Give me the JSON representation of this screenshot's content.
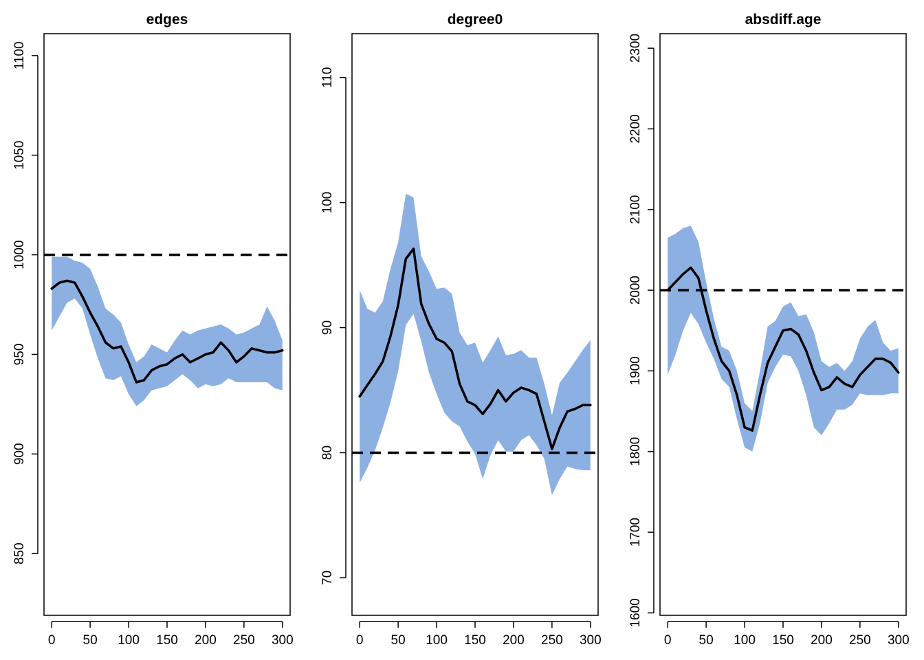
{
  "colors": {
    "band": "#8db0e3",
    "line": "#000000"
  },
  "chart_data": [
    {
      "type": "line",
      "title": "edges",
      "xlabel": "",
      "ylabel": "",
      "xlim": [
        -10,
        310
      ],
      "ylim": [
        819,
        1111
      ],
      "x_ticks": [
        0,
        50,
        100,
        150,
        200,
        250,
        300
      ],
      "y_ticks": [
        850,
        900,
        950,
        1000,
        1050,
        1100
      ],
      "target": 1000,
      "x": [
        0,
        10,
        20,
        30,
        40,
        50,
        60,
        70,
        80,
        90,
        100,
        110,
        120,
        130,
        140,
        150,
        160,
        170,
        180,
        190,
        200,
        210,
        220,
        230,
        240,
        250,
        260,
        270,
        280,
        290,
        300
      ],
      "mean": [
        983,
        986,
        987,
        986,
        979,
        971,
        964,
        956,
        953,
        954,
        946,
        936,
        937,
        942,
        944,
        945,
        948,
        950,
        946,
        948,
        950,
        951,
        956,
        952,
        946,
        949,
        953,
        952,
        951,
        951,
        952
      ],
      "upper": [
        999,
        999,
        999,
        997,
        996,
        993,
        984,
        973,
        970,
        966,
        955,
        946,
        949,
        955,
        953,
        951,
        957,
        962,
        960,
        962,
        963,
        964,
        965,
        963,
        960,
        961,
        963,
        965,
        974,
        967,
        957
      ],
      "lower": [
        962,
        969,
        976,
        978,
        973,
        960,
        948,
        938,
        937,
        939,
        930,
        924,
        927,
        932,
        933,
        934,
        937,
        940,
        937,
        933,
        935,
        934,
        935,
        938,
        936,
        936,
        936,
        936,
        936,
        933,
        932
      ]
    },
    {
      "type": "line",
      "title": "degree0",
      "xlabel": "",
      "ylabel": "",
      "xlim": [
        -10,
        310
      ],
      "ylim": [
        67,
        113.5
      ],
      "x_ticks": [
        0,
        50,
        100,
        150,
        200,
        250,
        300
      ],
      "y_ticks": [
        70,
        80,
        90,
        100,
        110
      ],
      "target": 80,
      "x": [
        0,
        10,
        20,
        30,
        40,
        50,
        60,
        70,
        80,
        90,
        100,
        110,
        120,
        130,
        140,
        150,
        160,
        170,
        180,
        190,
        200,
        210,
        220,
        230,
        240,
        250,
        260,
        270,
        280,
        290,
        300
      ],
      "mean": [
        84.5,
        85.4,
        86.3,
        87.3,
        89.3,
        91.8,
        95.5,
        96.3,
        91.9,
        90.3,
        89.1,
        88.8,
        88.1,
        85.5,
        84.1,
        83.8,
        83.1,
        83.9,
        85.0,
        84.1,
        84.8,
        85.2,
        85.0,
        84.7,
        82.5,
        80.3,
        82.0,
        83.3,
        83.5,
        83.8,
        83.8
      ],
      "upper": [
        93.0,
        91.5,
        91.2,
        92.1,
        94.7,
        96.8,
        100.7,
        100.4,
        95.7,
        94.5,
        93.1,
        93.2,
        92.7,
        89.6,
        88.6,
        88.8,
        87.2,
        88.2,
        89.3,
        87.8,
        87.9,
        88.2,
        87.6,
        87.6,
        85.5,
        83.0,
        85.6,
        86.4,
        87.3,
        88.2,
        89.0
      ],
      "lower": [
        77.6,
        78.8,
        80.2,
        82.0,
        84.0,
        86.5,
        90.2,
        91.1,
        88.9,
        86.4,
        84.7,
        83.2,
        82.5,
        82.1,
        80.9,
        79.9,
        77.9,
        79.8,
        81.0,
        80.1,
        80.1,
        81.0,
        81.4,
        80.6,
        79.5,
        76.6,
        77.9,
        78.9,
        78.7,
        78.6,
        78.6
      ]
    },
    {
      "type": "line",
      "title": "absdiff.age",
      "xlabel": "",
      "ylabel": "",
      "xlim": [
        -10,
        310
      ],
      "ylim": [
        1597,
        2318
      ],
      "x_ticks": [
        0,
        50,
        100,
        150,
        200,
        250,
        300
      ],
      "y_ticks": [
        1600,
        1700,
        1800,
        1900,
        2000,
        2100,
        2200,
        2300
      ],
      "target": 2000,
      "x": [
        0,
        10,
        20,
        30,
        40,
        50,
        60,
        70,
        80,
        90,
        100,
        110,
        120,
        130,
        140,
        150,
        160,
        170,
        180,
        190,
        200,
        210,
        220,
        230,
        240,
        250,
        260,
        270,
        280,
        290,
        300
      ],
      "mean": [
        2000,
        2010,
        2020,
        2028,
        2015,
        1975,
        1940,
        1912,
        1900,
        1870,
        1830,
        1826,
        1870,
        1910,
        1930,
        1950,
        1952,
        1945,
        1925,
        1898,
        1876,
        1880,
        1892,
        1884,
        1880,
        1895,
        1905,
        1915,
        1915,
        1910,
        1898
      ],
      "upper": [
        2065,
        2070,
        2077,
        2080,
        2060,
        2010,
        1965,
        1930,
        1925,
        1900,
        1860,
        1850,
        1900,
        1955,
        1962,
        1980,
        1985,
        1968,
        1970,
        1948,
        1912,
        1905,
        1910,
        1900,
        1912,
        1940,
        1955,
        1963,
        1935,
        1925,
        1928
      ],
      "lower": [
        1895,
        1920,
        1950,
        1972,
        1958,
        1935,
        1915,
        1890,
        1880,
        1840,
        1805,
        1800,
        1835,
        1885,
        1905,
        1920,
        1918,
        1900,
        1870,
        1830,
        1820,
        1835,
        1852,
        1852,
        1858,
        1872,
        1870,
        1870,
        1870,
        1872,
        1872
      ]
    }
  ]
}
